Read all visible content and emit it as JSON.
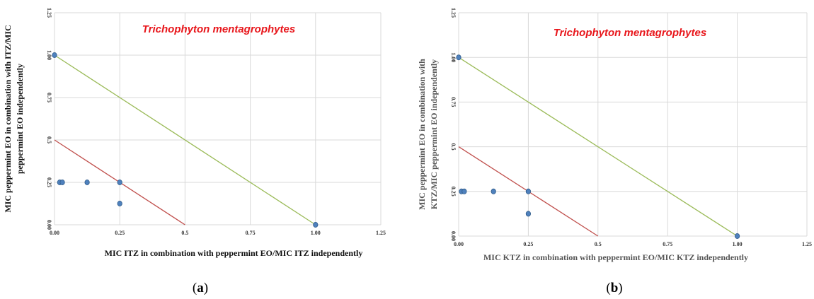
{
  "colors": {
    "grid": "#d9d9d9",
    "line_add": "#9bbb59",
    "line_syn": "#c0504d",
    "point": "#4f81bd",
    "title": "#e8161b"
  },
  "chart_data": [
    {
      "type": "scatter",
      "panel_label": "a",
      "title": "Trichophyton mentagrophytes",
      "xlabel": "MIC ITZ in combination with peppermint EO/MIC ITZ independently",
      "ylabel_lines": [
        "MIC peppermint EO in combination with ITZ/MIC",
        "peppermint EO independently"
      ],
      "xlim": [
        0,
        1.25
      ],
      "ylim": [
        0,
        1.25
      ],
      "xticks": [
        "0.00",
        "0.25",
        "0.5",
        "0.75",
        "1.00",
        "1.25"
      ],
      "yticks": [
        "0.00",
        "0.25",
        "0.5",
        "0.75",
        "1.00",
        "1.25"
      ],
      "grid": true,
      "lines": [
        {
          "x": [
            0,
            1
          ],
          "y": [
            1,
            0
          ]
        },
        {
          "x": [
            0,
            0.5
          ],
          "y": [
            0.5,
            0
          ]
        }
      ],
      "points": [
        {
          "x": 0,
          "y": 1
        },
        {
          "x": 0.02,
          "y": 0.25
        },
        {
          "x": 0.03,
          "y": 0.25
        },
        {
          "x": 0.125,
          "y": 0.25
        },
        {
          "x": 0.25,
          "y": 0.25
        },
        {
          "x": 0.25,
          "y": 0.125
        },
        {
          "x": 1,
          "y": 0
        }
      ]
    },
    {
      "type": "scatter",
      "panel_label": "b",
      "title": "Trichophyton mentagrophytes",
      "xlabel": "MIC KTZ in combination with peppermint EO/MIC KTZ independently",
      "ylabel_lines": [
        "MIC peppermint EO in combination with",
        "KTZ/MIC peppermint EO independently"
      ],
      "xlim": [
        0,
        1.25
      ],
      "ylim": [
        0,
        1.25
      ],
      "xticks": [
        "0.00",
        "0.25",
        "0.5",
        "0.75",
        "1.00",
        "1.25"
      ],
      "yticks": [
        "0.00",
        "0.25",
        "0.5",
        "0.75",
        "1.00",
        "1.25"
      ],
      "grid": true,
      "lines": [
        {
          "x": [
            0,
            1
          ],
          "y": [
            1,
            0
          ]
        },
        {
          "x": [
            0,
            0.5
          ],
          "y": [
            0.5,
            0
          ]
        }
      ],
      "points": [
        {
          "x": 0,
          "y": 1
        },
        {
          "x": 0.01,
          "y": 0.25
        },
        {
          "x": 0.02,
          "y": 0.25
        },
        {
          "x": 0.125,
          "y": 0.25
        },
        {
          "x": 0.25,
          "y": 0.25
        },
        {
          "x": 0.25,
          "y": 0.125
        },
        {
          "x": 1,
          "y": 0
        }
      ]
    }
  ]
}
